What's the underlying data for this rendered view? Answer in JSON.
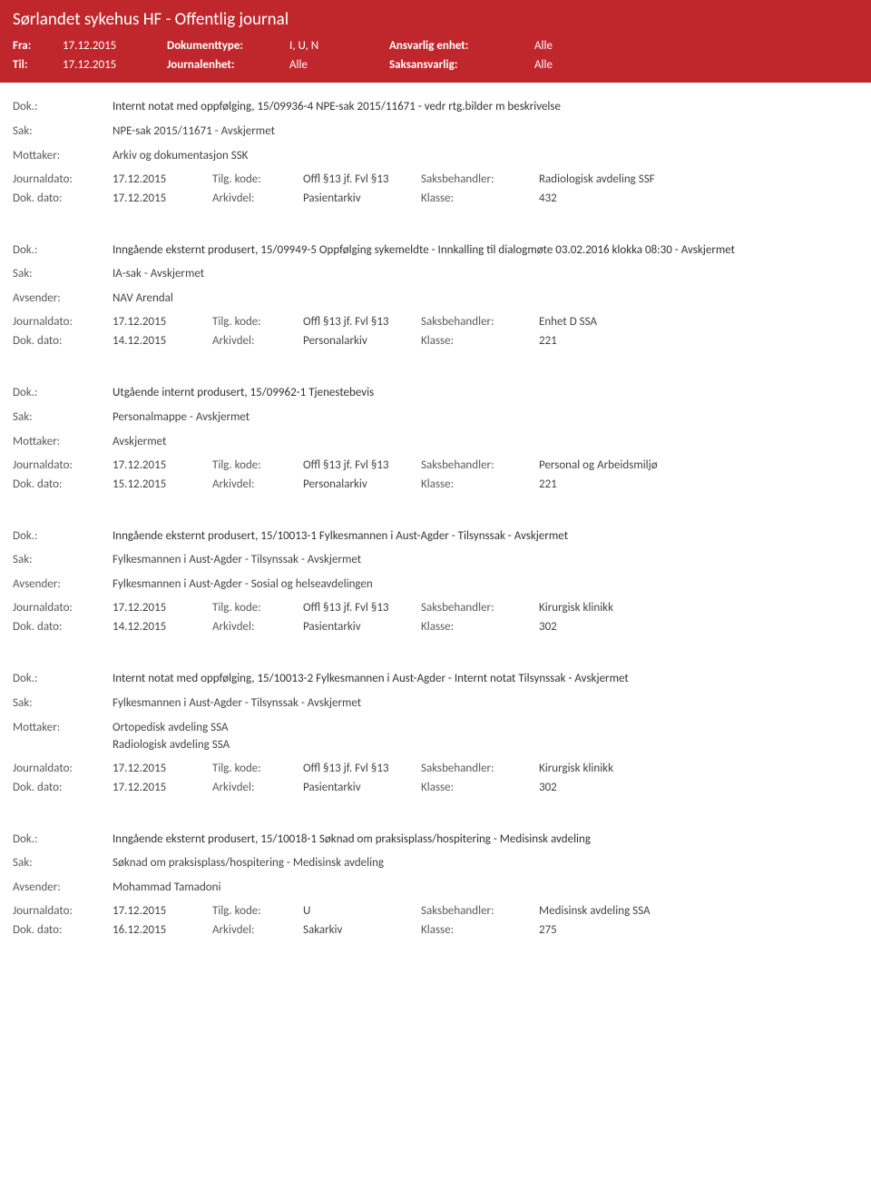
{
  "header": {
    "title": "Sørlandet sykehus HF - Offentlig journal",
    "fra_label": "Fra:",
    "fra_value": "17.12.2015",
    "til_label": "Til:",
    "til_value": "17.12.2015",
    "doktype_label": "Dokumenttype:",
    "doktype_value": "I, U, N",
    "journalenhet_label": "Journalenhet:",
    "journalenhet_value": "Alle",
    "ansvarlig_label": "Ansvarlig enhet:",
    "ansvarlig_value": "Alle",
    "saksansvarlig_label": "Saksansvarlig:",
    "saksansvarlig_value": "Alle"
  },
  "labels": {
    "dok": "Dok.:",
    "sak": "Sak:",
    "mottaker": "Mottaker:",
    "avsender": "Avsender:",
    "journaldato": "Journaldato:",
    "dokdato": "Dok. dato:",
    "tilgkode": "Tilg. kode:",
    "arkivdel": "Arkivdel:",
    "saksbehandler": "Saksbehandler:",
    "klasse": "Klasse:"
  },
  "entries": [
    {
      "dok": "Internt notat med oppfølging, 15/09936-4 NPE-sak 2015/11671 - vedr rtg.bilder m beskrivelse",
      "sak": "NPE-sak 2015/11671 - Avskjermet",
      "party_label": "Mottaker:",
      "party": "Arkiv og dokumentasjon SSK",
      "journaldato": "17.12.2015",
      "tilgkode": "Offl §13 jf. Fvl §13",
      "saksbehandler": "Radiologisk avdeling SSF",
      "dokdato": "17.12.2015",
      "arkivdel": "Pasientarkiv",
      "klasse": "432"
    },
    {
      "dok": "Inngående eksternt produsert, 15/09949-5 Oppfølging sykemeldte - Innkalling til dialogmøte 03.02.2016 klokka 08:30 - Avskjermet",
      "sak": "IA-sak - Avskjermet",
      "party_label": "Avsender:",
      "party": "NAV Arendal",
      "journaldato": "17.12.2015",
      "tilgkode": "Offl §13 jf. Fvl §13",
      "saksbehandler": "Enhet D SSA",
      "dokdato": "14.12.2015",
      "arkivdel": "Personalarkiv",
      "klasse": "221"
    },
    {
      "dok": "Utgående internt produsert, 15/09962-1 Tjenestebevis",
      "sak": "Personalmappe - Avskjermet",
      "party_label": "Mottaker:",
      "party": "Avskjermet",
      "journaldato": "17.12.2015",
      "tilgkode": "Offl §13 jf. Fvl §13",
      "saksbehandler": "Personal og Arbeidsmiljø",
      "dokdato": "15.12.2015",
      "arkivdel": "Personalarkiv",
      "klasse": "221"
    },
    {
      "dok": "Inngående eksternt produsert, 15/10013-1 Fylkesmannen i Aust-Agder - Tilsynssak - Avskjermet",
      "sak": "Fylkesmannen i Aust-Agder - Tilsynssak - Avskjermet",
      "party_label": "Avsender:",
      "party": "Fylkesmannen i Aust-Agder - Sosial og helseavdelingen",
      "journaldato": "17.12.2015",
      "tilgkode": "Offl §13 jf. Fvl §13",
      "saksbehandler": "Kirurgisk klinikk",
      "dokdato": "14.12.2015",
      "arkivdel": "Pasientarkiv",
      "klasse": "302"
    },
    {
      "dok": "Internt notat med oppfølging, 15/10013-2 Fylkesmannen i Aust-Agder - Internt notat Tilsynssak - Avskjermet",
      "sak": "Fylkesmannen i Aust-Agder - Tilsynssak - Avskjermet",
      "party_label": "Mottaker:",
      "party": "Ortopedisk avdeling SSA\nRadiologisk avdeling SSA",
      "journaldato": "17.12.2015",
      "tilgkode": "Offl §13 jf. Fvl §13",
      "saksbehandler": "Kirurgisk klinikk",
      "dokdato": "17.12.2015",
      "arkivdel": "Pasientarkiv",
      "klasse": "302"
    },
    {
      "dok": "Inngående eksternt produsert, 15/10018-1 Søknad om praksisplass/hospitering - Medisinsk avdeling",
      "sak": "Søknad om praksisplass/hospitering - Medisinsk avdeling",
      "party_label": "Avsender:",
      "party": "Mohammad Tamadoni",
      "journaldato": "17.12.2015",
      "tilgkode": "U",
      "saksbehandler": "Medisinsk avdeling SSA",
      "dokdato": "16.12.2015",
      "arkivdel": "Sakarkiv",
      "klasse": "275"
    }
  ]
}
